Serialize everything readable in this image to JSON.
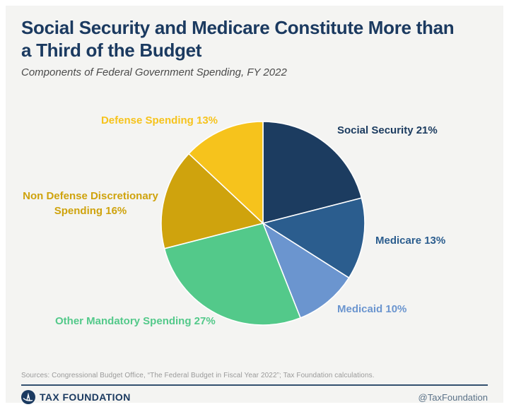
{
  "header": {
    "title": "Social Security and Medicare Constitute More than a Third of the Budget",
    "subtitle": "Components of Federal Government Spending, FY 2022"
  },
  "chart_data": {
    "type": "pie",
    "title": "Social Security and Medicare Constitute More than a Third of the Budget",
    "subtitle": "Components of Federal Government Spending, FY 2022",
    "unit": "percent of federal spending",
    "start_angle": "12 o'clock",
    "direction": "clockwise",
    "legend_position": "labels around pie, colored to match slices",
    "slices": [
      {
        "label": "Social Security",
        "value": 21,
        "display": "Social Security 21%",
        "color": "#1c3c60"
      },
      {
        "label": "Medicare",
        "value": 13,
        "display": "Medicare 13%",
        "color": "#2b5d8e"
      },
      {
        "label": "Medicaid",
        "value": 10,
        "display": "Medicaid 10%",
        "color": "#6b95cf"
      },
      {
        "label": "Other Mandatory Spending",
        "value": 27,
        "display": "Other Mandatory Spending 27%",
        "color": "#53c98a"
      },
      {
        "label": "Non Defense Discretionary Spending",
        "value": 16,
        "display": "Non Defense Discretionary Spending 16%",
        "color": "#cfa30d"
      },
      {
        "label": "Defense Spending",
        "value": 13,
        "display": "Defense Spending 13%",
        "color": "#f6c31c"
      }
    ]
  },
  "footer": {
    "sources": "Sources: Congressional Budget Office, “The Federal Budget in Fiscal Year 2022”; Tax Foundation calculations.",
    "brand": "TAX FOUNDATION",
    "social_handle": "@TaxFoundation"
  },
  "colors": {
    "title": "#1b3a60",
    "subtitle": "#4b4b4b",
    "background": "#f4f4f2",
    "divider": "#33506f",
    "sources_text": "#9a9a9a"
  }
}
